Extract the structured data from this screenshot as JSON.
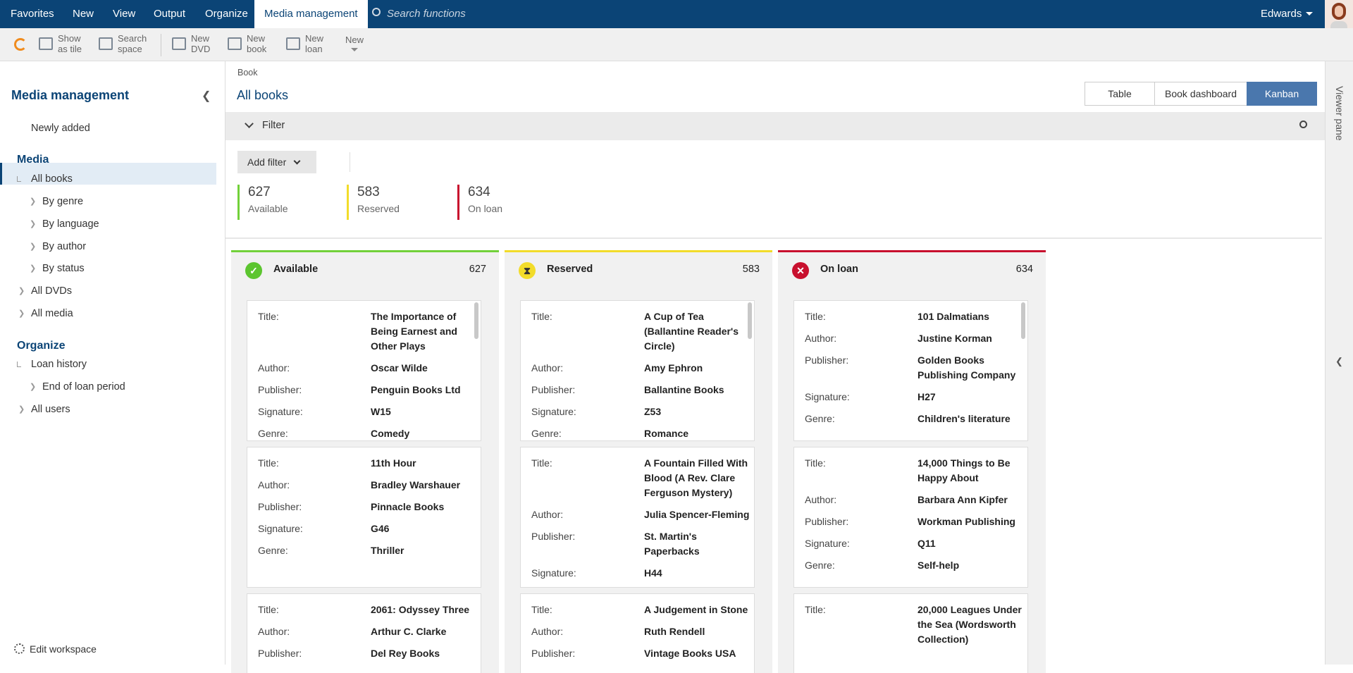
{
  "menu": {
    "items": [
      "Favorites",
      "New",
      "View",
      "Output",
      "Organize",
      "Media management"
    ],
    "search": "Search functions",
    "user": "Edwards"
  },
  "toolbar": {
    "items": [
      [
        "Show",
        "as tile"
      ],
      [
        "Search",
        "space"
      ],
      [
        "New",
        "DVD"
      ],
      [
        "New",
        "book"
      ],
      [
        "New",
        "loan"
      ],
      [
        "New"
      ]
    ]
  },
  "sidebar": {
    "title": "Media management",
    "items": [
      "Newly added",
      "Media",
      "All books",
      "By genre",
      "By language",
      "By author",
      "By status",
      "All DVDs",
      "All media",
      "Organize",
      "Loan history",
      "End of loan period",
      "All users"
    ],
    "edit_workspace": "Edit workspace"
  },
  "header": {
    "breadcrumb": "Book",
    "title": "All books",
    "views": [
      "Table",
      "Book dashboard",
      "Kanban"
    ]
  },
  "filter": {
    "label": "Filter",
    "add": "Add filter"
  },
  "stats": [
    {
      "value": 627,
      "label": "Available"
    },
    {
      "value": 583,
      "label": "Reserved"
    },
    {
      "value": 634,
      "label": "On loan"
    }
  ],
  "columns": [
    {
      "title": "Available",
      "count": 627,
      "cards": [
        [
          [
            "Title:",
            "The Importance of Being Earnest and Other Plays"
          ],
          [
            "Author:",
            "Oscar Wilde"
          ],
          [
            "Publisher:",
            "Penguin Books Ltd"
          ],
          [
            "Signature:",
            "W15"
          ],
          [
            "Genre:",
            "Comedy"
          ]
        ],
        [
          [
            "Title:",
            "11th Hour"
          ],
          [
            "Author:",
            "Bradley Warshauer"
          ],
          [
            "Publisher:",
            "Pinnacle Books"
          ],
          [
            "Signature:",
            "G46"
          ],
          [
            "Genre:",
            "Thriller"
          ]
        ],
        [
          [
            "Title:",
            "2061: Odyssey Three"
          ],
          [
            "Author:",
            "Arthur C. Clarke"
          ],
          [
            "Publisher:",
            "Del Rey Books"
          ]
        ]
      ]
    },
    {
      "title": "Reserved",
      "count": 583,
      "cards": [
        [
          [
            "Title:",
            "A Cup of Tea (Ballantine Reader's Circle)"
          ],
          [
            "Author:",
            "Amy Ephron"
          ],
          [
            "Publisher:",
            "Ballantine Books"
          ],
          [
            "Signature:",
            "Z53"
          ],
          [
            "Genre:",
            "Romance"
          ]
        ],
        [
          [
            "Title:",
            "A Fountain Filled With Blood (A Rev. Clare Ferguson Mystery)"
          ],
          [
            "Author:",
            "Julia Spencer-Fleming"
          ],
          [
            "Publisher:",
            "St. Martin's Paperbacks"
          ],
          [
            "Signature:",
            "H44"
          ]
        ],
        [
          [
            "Title:",
            "A Judgement in Stone"
          ],
          [
            "Author:",
            "Ruth Rendell"
          ],
          [
            "Publisher:",
            "Vintage Books USA"
          ]
        ]
      ]
    },
    {
      "title": "On loan",
      "count": 634,
      "cards": [
        [
          [
            "Title:",
            "101 Dalmatians"
          ],
          [
            "Author:",
            "Justine Korman"
          ],
          [
            "Publisher:",
            "Golden Books Publishing Company"
          ],
          [
            "Signature:",
            "H27"
          ],
          [
            "Genre:",
            "Children's literature"
          ]
        ],
        [
          [
            "Title:",
            "14,000 Things to Be Happy About"
          ],
          [
            "Author:",
            "Barbara Ann Kipfer"
          ],
          [
            "Publisher:",
            "Workman Publishing"
          ],
          [
            "Signature:",
            "Q11"
          ],
          [
            "Genre:",
            "Self-help"
          ]
        ],
        [
          [
            "Title:",
            "20,000 Leagues Under the Sea (Wordsworth Collection)"
          ]
        ]
      ]
    }
  ],
  "viewer": "Viewer pane"
}
